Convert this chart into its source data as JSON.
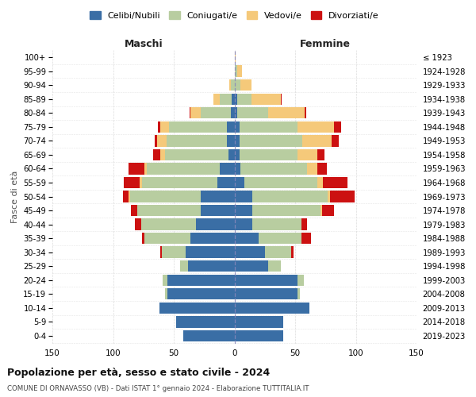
{
  "age_groups": [
    "100+",
    "95-99",
    "90-94",
    "85-89",
    "80-84",
    "75-79",
    "70-74",
    "65-69",
    "60-64",
    "55-59",
    "50-54",
    "45-49",
    "40-44",
    "35-39",
    "30-34",
    "25-29",
    "20-24",
    "15-19",
    "10-14",
    "5-9",
    "0-4"
  ],
  "birth_years": [
    "≤ 1923",
    "1924-1928",
    "1929-1933",
    "1934-1938",
    "1939-1943",
    "1944-1948",
    "1949-1953",
    "1954-1958",
    "1959-1963",
    "1964-1968",
    "1969-1973",
    "1974-1978",
    "1979-1983",
    "1984-1988",
    "1989-1993",
    "1994-1998",
    "1999-2003",
    "2004-2008",
    "2009-2013",
    "2014-2018",
    "2019-2023"
  ],
  "colors": {
    "celibe": "#3A6EA5",
    "coniugato": "#B8CDA0",
    "vedovo": "#F5C97A",
    "divorziato": "#CC1111"
  },
  "maschi": {
    "celibe": [
      0,
      0,
      0,
      2,
      3,
      6,
      6,
      5,
      12,
      14,
      28,
      28,
      32,
      36,
      40,
      38,
      55,
      55,
      62,
      48,
      42
    ],
    "coniugato": [
      0,
      0,
      3,
      10,
      25,
      48,
      50,
      52,
      60,
      62,
      58,
      52,
      45,
      38,
      20,
      7,
      4,
      2,
      0,
      0,
      0
    ],
    "vedovo": [
      0,
      0,
      1,
      5,
      8,
      7,
      8,
      4,
      2,
      2,
      1,
      0,
      0,
      0,
      0,
      0,
      0,
      0,
      0,
      0,
      0
    ],
    "divorziato": [
      0,
      0,
      0,
      0,
      1,
      2,
      2,
      6,
      13,
      13,
      5,
      5,
      5,
      2,
      1,
      0,
      0,
      0,
      0,
      0,
      0
    ]
  },
  "femmine": {
    "nubile": [
      0,
      0,
      0,
      2,
      2,
      4,
      4,
      4,
      5,
      8,
      15,
      15,
      15,
      20,
      25,
      28,
      52,
      52,
      62,
      40,
      40
    ],
    "coniugata": [
      0,
      2,
      5,
      12,
      26,
      48,
      52,
      48,
      55,
      60,
      62,
      56,
      40,
      35,
      22,
      10,
      5,
      2,
      0,
      0,
      0
    ],
    "vedova": [
      1,
      4,
      9,
      24,
      30,
      30,
      24,
      16,
      8,
      5,
      2,
      1,
      0,
      0,
      0,
      0,
      0,
      0,
      0,
      0,
      0
    ],
    "divorziata": [
      0,
      0,
      0,
      1,
      1,
      6,
      6,
      6,
      8,
      20,
      20,
      10,
      5,
      8,
      2,
      0,
      0,
      0,
      0,
      0,
      0
    ]
  },
  "title": "Popolazione per età, sesso e stato civile - 2024",
  "subtitle": "COMUNE DI ORNAVASSO (VB) - Dati ISTAT 1° gennaio 2024 - Elaborazione TUTTITALIA.IT",
  "xlabel_left": "Maschi",
  "xlabel_right": "Femmine",
  "ylabel_left": "Fasce di età",
  "xlim": 150,
  "bg_color": "#FFFFFF",
  "grid_color": "#CCCCCC",
  "legend_labels": [
    "Celibi/Nubili",
    "Coniugati/e",
    "Vedovi/e",
    "Divorziati/e"
  ]
}
